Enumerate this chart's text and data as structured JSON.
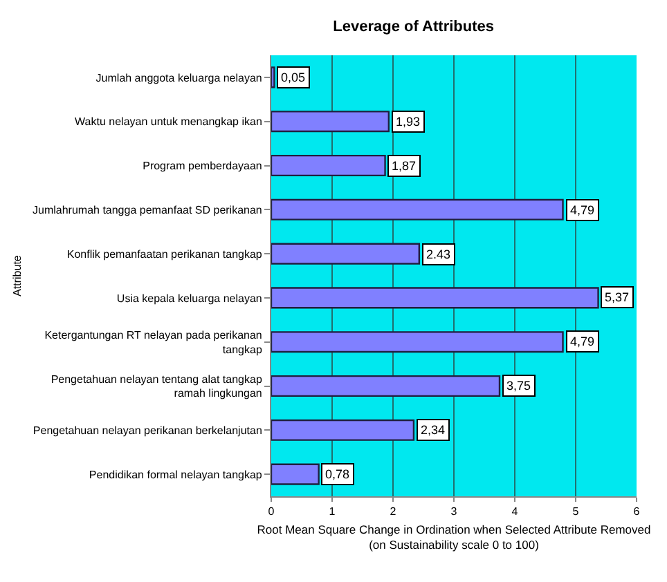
{
  "chart_data": {
    "type": "bar",
    "orientation": "horizontal",
    "title": "Leverage of Attributes",
    "xlabel": "Root Mean Square Change in Ordination when Selected Attribute Removed (on Sustainability scale 0 to 100)",
    "ylabel": "Attribute",
    "categories": [
      "Jumlah anggota keluarga nelayan",
      "Waktu nelayan untuk menangkap ikan",
      "Program pemberdayaan",
      "Jumlahrumah tangga pemanfaat SD perikanan",
      "Konflik pemanfaatan perikanan tangkap",
      "Usia kepala keluarga nelayan",
      "Ketergantungan RT nelayan pada perikanan tangkap",
      "Pengetahuan nelayan tentang alat tangkap ramah lingkungan",
      "Pengetahuan nelayan perikanan berkelanjutan",
      "Pendidikan formal nelayan tangkap"
    ],
    "values": [
      0.05,
      1.93,
      1.87,
      4.79,
      2.43,
      5.37,
      4.79,
      3.75,
      2.34,
      0.78
    ],
    "value_labels": [
      "0,05",
      "1,93",
      "1,87",
      "4,79",
      "2.43",
      "5,37",
      "4,79",
      "3,75",
      "2,34",
      "0,78"
    ],
    "color": "#8080ff",
    "xlim": [
      0,
      6
    ],
    "xticks": [
      0,
      1,
      2,
      3,
      4,
      5,
      6
    ],
    "grid": "x"
  }
}
